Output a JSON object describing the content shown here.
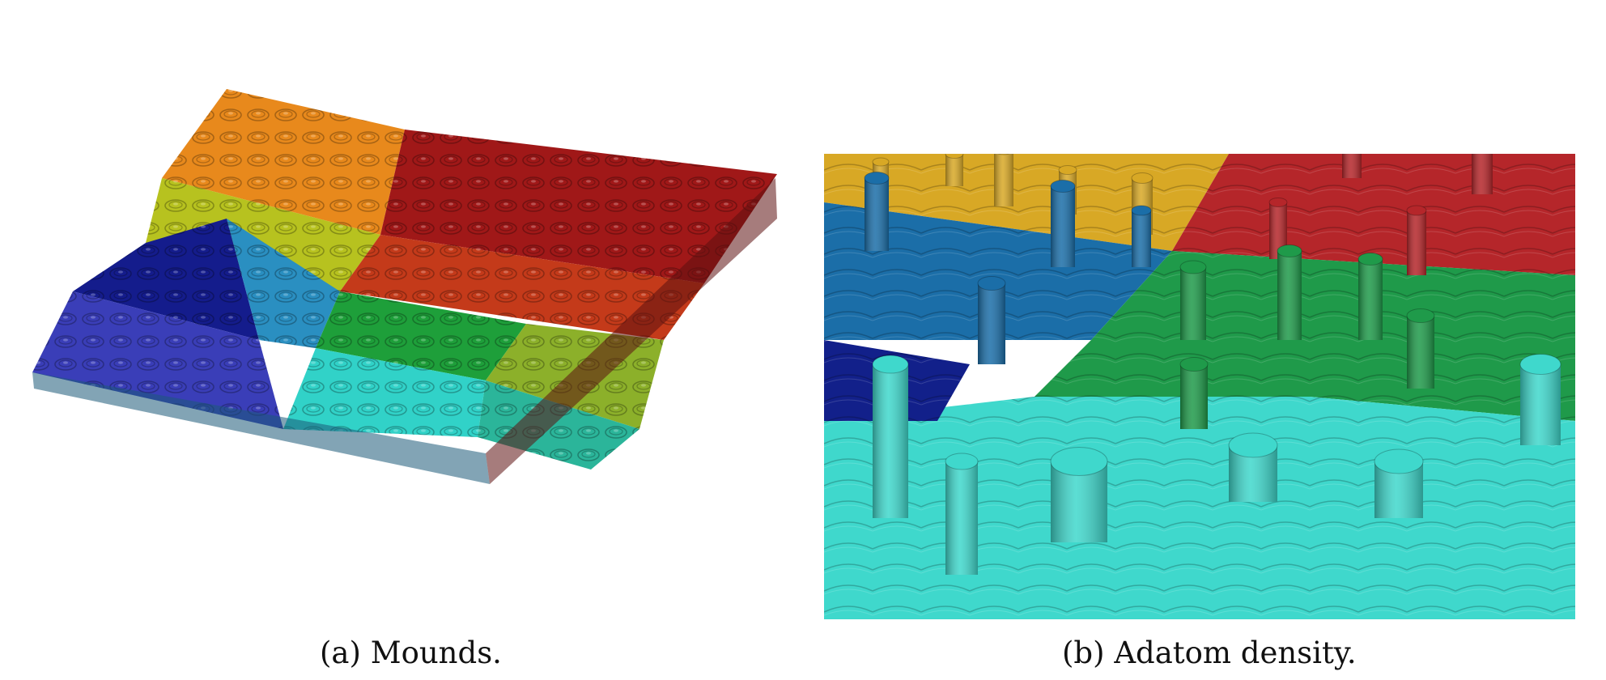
{
  "figure": {
    "subfigures": [
      {
        "id": "a",
        "caption": "(a)  Mounds.",
        "regions": [
          {
            "color": "#e8891c"
          },
          {
            "color": "#b7c21f"
          },
          {
            "color": "#a01818"
          },
          {
            "color": "#141c8c"
          },
          {
            "color": "#2a8fc1"
          },
          {
            "color": "#c43a1a"
          },
          {
            "color": "#3a3eb8"
          },
          {
            "color": "#1e9f3a"
          },
          {
            "color": "#8cb02a"
          },
          {
            "color": "#31d2c8"
          },
          {
            "color": "#2bb59a"
          }
        ]
      },
      {
        "id": "b",
        "caption": "(b)  Adatom density.",
        "regions": [
          {
            "color": "#d8a825"
          },
          {
            "color": "#b5262a"
          },
          {
            "color": "#1b6ea8"
          },
          {
            "color": "#1f9a4a"
          },
          {
            "color": "#3fd8cc"
          },
          {
            "color": "#12208a"
          }
        ]
      }
    ]
  }
}
